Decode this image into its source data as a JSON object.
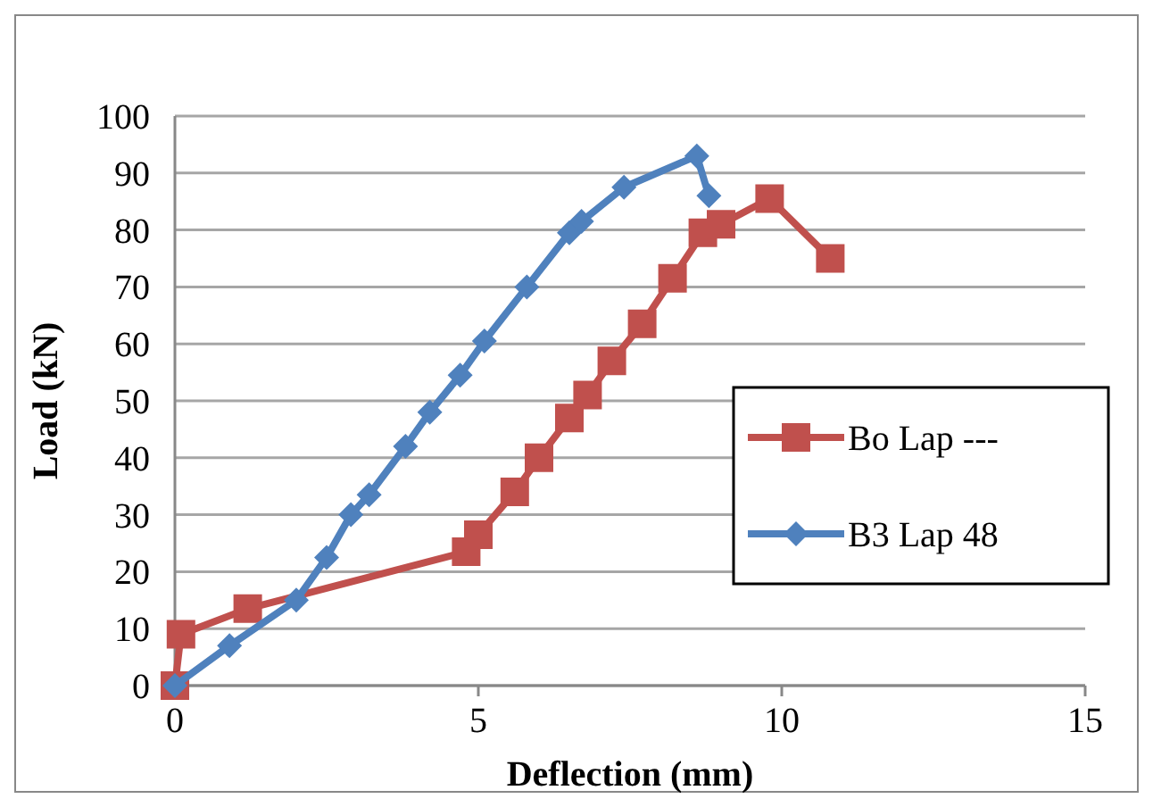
{
  "chart_data": {
    "type": "line",
    "xlabel": "Deflection (mm)",
    "ylabel": "Load (kN)",
    "xlim": [
      0,
      15
    ],
    "xticks": [
      0,
      5,
      10,
      15
    ],
    "ylim": [
      0,
      100
    ],
    "yticks": [
      0,
      10,
      20,
      30,
      40,
      50,
      60,
      70,
      80,
      90,
      100
    ],
    "grid": "y",
    "legend": "right",
    "series": [
      {
        "name": "Bo Lap ---",
        "color": "#c0504d",
        "marker": "square",
        "x": [
          0,
          0.1,
          1.2,
          4.8,
          5,
          5.6,
          6,
          6.5,
          6.8,
          7.2,
          7.7,
          8.2,
          8.7,
          9,
          9.8,
          10.8
        ],
        "values": [
          0,
          9,
          13.5,
          23.5,
          26.5,
          34,
          40,
          47,
          51,
          57,
          63.5,
          71.5,
          79.5,
          81,
          85.5,
          75
        ]
      },
      {
        "name": "B3 Lap 48",
        "color": "#4f81bd",
        "marker": "diamond",
        "x": [
          0,
          0.9,
          2,
          2.5,
          2.9,
          3.2,
          3.8,
          4.2,
          4.7,
          5.1,
          5.8,
          6.5,
          6.7,
          7.4,
          8.6,
          8.8
        ],
        "values": [
          0,
          7,
          15,
          22.5,
          30,
          33.5,
          42,
          48,
          54.5,
          60.5,
          70,
          79.5,
          81.5,
          87.5,
          93,
          86
        ]
      }
    ]
  }
}
